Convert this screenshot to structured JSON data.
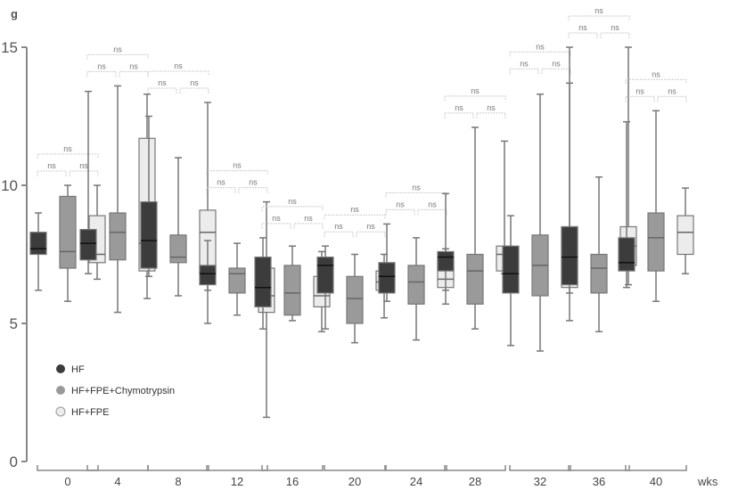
{
  "chart_data": {
    "type": "box",
    "ylabel": "g",
    "xlabel": "wks",
    "ylim": [
      0,
      15
    ],
    "yticks": [
      0,
      5,
      10,
      15
    ],
    "categories": [
      "0",
      "4",
      "8",
      "12",
      "16",
      "20",
      "24",
      "28",
      "32",
      "36",
      "40"
    ],
    "significance_label": "ns",
    "series": [
      {
        "name": "HF",
        "color": "#3c3c3c",
        "boxes": [
          [
            6.2,
            7.5,
            7.7,
            8.3,
            9.0
          ],
          [
            6.8,
            7.3,
            7.9,
            8.4,
            13.4
          ],
          [
            6.7,
            7.0,
            8.0,
            9.4,
            12.5
          ],
          [
            5.0,
            6.4,
            6.8,
            7.1,
            8.0
          ],
          [
            4.8,
            5.6,
            6.3,
            7.4,
            8.1
          ],
          [
            4.8,
            6.1,
            7.1,
            7.4,
            7.8
          ],
          [
            5.8,
            6.1,
            6.7,
            7.2,
            8.6
          ],
          [
            6.2,
            6.9,
            7.4,
            7.6,
            9.7
          ],
          [
            4.2,
            6.1,
            6.8,
            7.8,
            8.9
          ],
          [
            6.1,
            6.4,
            7.4,
            8.5,
            15.0
          ],
          [
            6.3,
            6.9,
            7.2,
            8.1,
            12.3
          ]
        ]
      },
      {
        "name": "HF+FPE+Chymotrypsin",
        "color": "#9a9a9a",
        "boxes": [
          [
            5.8,
            7.0,
            7.6,
            9.6,
            10.0
          ],
          [
            5.4,
            7.3,
            8.3,
            9.0,
            13.6
          ],
          [
            6.0,
            7.2,
            7.4,
            8.2,
            11.0
          ],
          [
            5.3,
            6.1,
            6.8,
            7.0,
            7.9
          ],
          [
            5.1,
            5.3,
            6.1,
            7.1,
            7.8
          ],
          [
            4.3,
            5.0,
            5.9,
            6.7,
            7.5
          ],
          [
            4.4,
            5.7,
            6.5,
            7.1,
            8.1
          ],
          [
            4.8,
            5.7,
            6.9,
            7.5,
            12.1
          ],
          [
            4.0,
            6.0,
            7.1,
            8.2,
            13.3
          ],
          [
            4.7,
            6.1,
            7.0,
            7.5,
            10.3
          ],
          [
            5.8,
            6.9,
            8.1,
            9.0,
            12.7
          ]
        ]
      },
      {
        "name": "HF+FPE",
        "color": "#ececec",
        "boxes": [
          [
            6.6,
            7.2,
            7.5,
            8.9,
            10.0
          ],
          [
            5.9,
            6.9,
            7.9,
            11.7,
            13.3
          ],
          [
            6.2,
            6.8,
            8.3,
            9.1,
            13.0
          ],
          [
            1.6,
            5.4,
            6.0,
            7.0,
            9.4
          ],
          [
            4.7,
            5.6,
            6.0,
            6.7,
            7.6
          ],
          [
            5.2,
            6.2,
            6.5,
            6.9,
            7.5
          ],
          [
            5.7,
            6.3,
            6.6,
            7.3,
            7.7
          ],
          [
            6.8,
            6.9,
            7.5,
            7.8,
            11.6
          ],
          [
            5.1,
            6.3,
            7.2,
            8.5,
            13.7
          ],
          [
            6.4,
            7.1,
            7.8,
            8.5,
            15.0
          ],
          [
            6.8,
            7.5,
            8.3,
            8.9,
            9.9
          ]
        ]
      }
    ]
  }
}
